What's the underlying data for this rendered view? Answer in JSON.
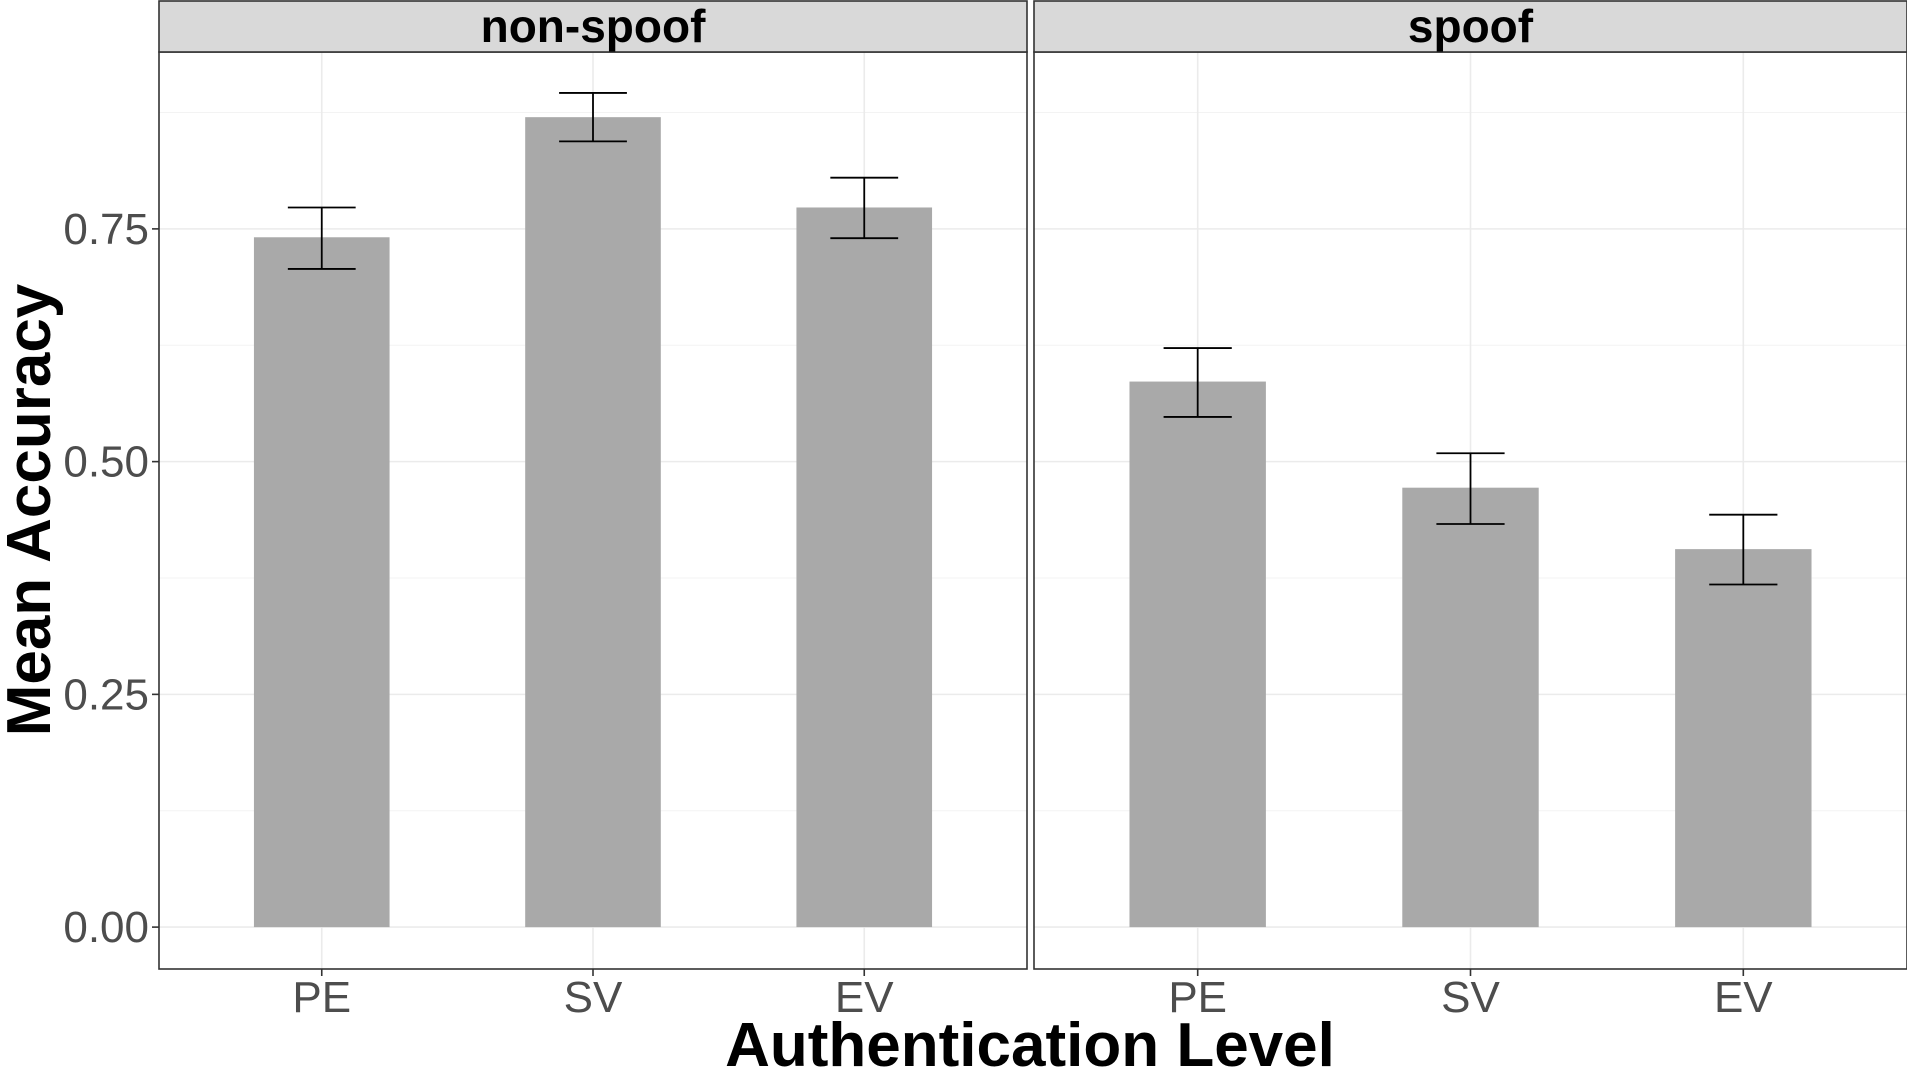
{
  "chart_data": {
    "type": "bar",
    "xlabel": "Authentication Level",
    "ylabel": "Mean Accuracy",
    "ylim": [
      -0.045,
      0.94
    ],
    "yticks": [
      "0.00",
      "0.25",
      "0.50",
      "0.75"
    ],
    "ytick_values": [
      0,
      0.25,
      0.5,
      0.75
    ],
    "grid": true,
    "bar_color": "#a9a9a9",
    "facets": [
      {
        "label": "non-spoof",
        "categories": [
          "PE",
          "SV",
          "EV"
        ],
        "values": [
          0.741,
          0.87,
          0.773
        ],
        "error_low": [
          0.707,
          0.844,
          0.74
        ],
        "error_high": [
          0.773,
          0.896,
          0.805
        ]
      },
      {
        "label": "spoof",
        "categories": [
          "PE",
          "SV",
          "EV"
        ],
        "values": [
          0.586,
          0.472,
          0.406
        ],
        "error_low": [
          0.548,
          0.433,
          0.368
        ],
        "error_high": [
          0.622,
          0.509,
          0.443
        ]
      }
    ]
  }
}
